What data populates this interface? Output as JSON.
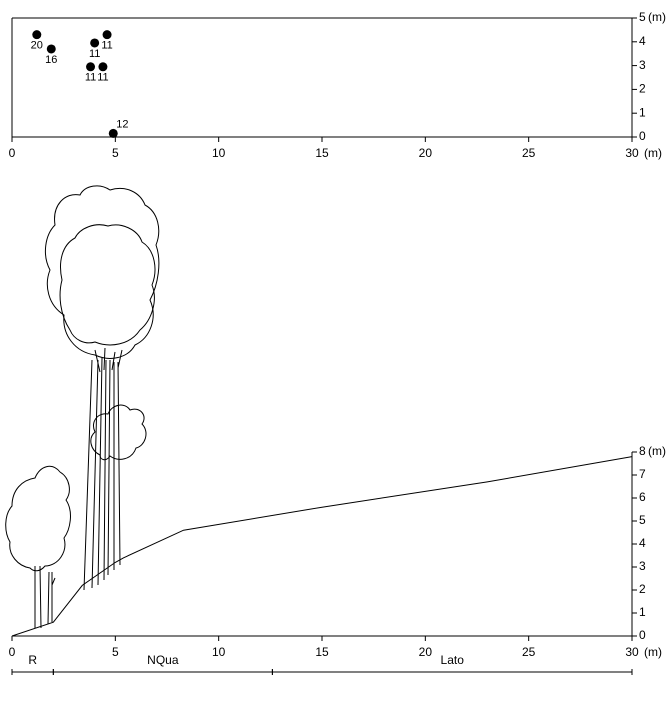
{
  "chart_data": [
    {
      "type": "scatter",
      "x": [
        1.2,
        1.9,
        4.0,
        4.6,
        3.8,
        4.4,
        4.9
      ],
      "y": [
        4.3,
        3.7,
        3.95,
        4.3,
        2.95,
        2.95,
        0.15
      ],
      "point_labels": [
        "20",
        "16",
        "11",
        "11",
        "11",
        "11",
        "12"
      ],
      "color": "#000000",
      "xlim": [
        0,
        30
      ],
      "xticks": [
        0,
        5,
        10,
        15,
        20,
        25,
        30
      ],
      "ylim": [
        0,
        5
      ],
      "yticks": [
        0,
        1,
        2,
        3,
        4,
        5
      ],
      "x_unit": "(m)",
      "y_unit": "(m)"
    },
    {
      "type": "line",
      "x": [
        0,
        2,
        3.4,
        5,
        5.4,
        8.3,
        15,
        23,
        30
      ],
      "values": [
        0,
        0.6,
        2.2,
        3.2,
        3.4,
        4.6,
        5.6,
        6.7,
        7.8
      ],
      "color": "#000000",
      "xlim": [
        0,
        30
      ],
      "xticks": [
        0,
        5,
        10,
        15,
        20,
        25,
        30
      ],
      "ylim": [
        0,
        8
      ],
      "yticks": [
        0,
        1,
        2,
        3,
        4,
        5,
        6,
        7,
        8
      ],
      "x_unit": "(m)",
      "y_unit": "(m)",
      "zones": [
        {
          "label": "R",
          "start": 0,
          "end": 2
        },
        {
          "label": "NQua",
          "start": 2,
          "end": 12.6
        },
        {
          "label": "Lato",
          "start": 12.6,
          "end": 30
        }
      ]
    }
  ]
}
